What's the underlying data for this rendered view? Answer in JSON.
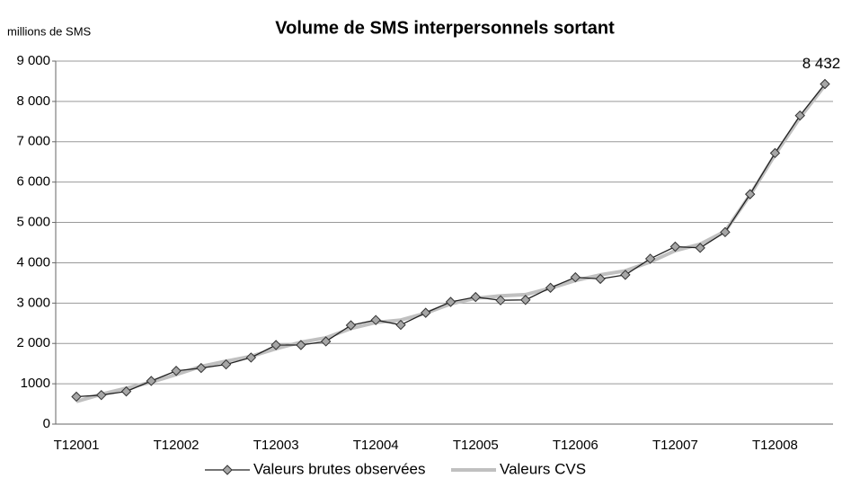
{
  "chart_data": {
    "type": "line",
    "title": "Volume de SMS interpersonnels sortant",
    "y_label": "millions de SMS",
    "categories": [
      "T12001",
      null,
      null,
      null,
      "T12002",
      null,
      null,
      null,
      "T12003",
      null,
      null,
      null,
      "T12004",
      null,
      null,
      null,
      "T12005",
      null,
      null,
      null,
      "T12006",
      null,
      null,
      null,
      "T12007",
      null,
      null,
      null,
      "T12008",
      null,
      null
    ],
    "series": [
      {
        "name": "Valeurs brutes observées",
        "color": "#222222",
        "marker_color": "#a6a6a6",
        "values": [
          680,
          720,
          810,
          1070,
          1320,
          1390,
          1480,
          1650,
          1960,
          1960,
          2050,
          2450,
          2580,
          2460,
          2760,
          3030,
          3150,
          3070,
          3080,
          3380,
          3640,
          3600,
          3700,
          4100,
          4400,
          4370,
          4760,
          5700,
          6720,
          7650,
          8432
        ],
        "value_labels": [
          null,
          null,
          null,
          null,
          null,
          null,
          null,
          null,
          null,
          null,
          null,
          null,
          null,
          null,
          null,
          null,
          null,
          null,
          null,
          null,
          null,
          null,
          null,
          null,
          null,
          null,
          null,
          null,
          null,
          null,
          "8 432"
        ]
      },
      {
        "name": "Valeurs CVS",
        "color": "#c0c0c0",
        "values": [
          560,
          740,
          890,
          1040,
          1230,
          1430,
          1560,
          1680,
          1870,
          2030,
          2140,
          2370,
          2520,
          2580,
          2750,
          2980,
          3120,
          3180,
          3210,
          3370,
          3560,
          3700,
          3800,
          4020,
          4300,
          4460,
          4780,
          5680,
          6680,
          7600,
          8400
        ]
      }
    ],
    "ylim": [
      0,
      9000
    ],
    "yticks": [
      0,
      1000,
      {
        "value": 2000,
        "label": "2 000"
      },
      {
        "value": 3000,
        "label": "3 000"
      },
      {
        "value": 4000,
        "label": "4 000"
      },
      {
        "value": 5000,
        "label": "5 000"
      },
      {
        "value": 6000,
        "label": "6 000"
      },
      {
        "value": 7000,
        "label": "7 000"
      },
      {
        "value": 8000,
        "label": "8 000"
      },
      {
        "value": 9000,
        "label": "9 000"
      }
    ],
    "grid": true,
    "legend": "bottom"
  }
}
